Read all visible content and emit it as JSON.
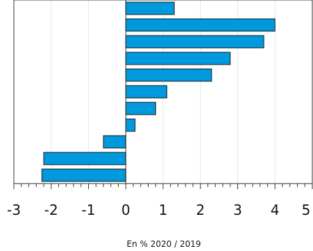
{
  "chart_data": {
    "type": "bar",
    "orientation": "horizontal",
    "title": "",
    "xlabel": "En % 2020 / 2019",
    "ylabel": "",
    "xlim": [
      -3,
      5
    ],
    "x_ticks": [
      "-3",
      "-2",
      "-1",
      "0",
      "1",
      "2",
      "3",
      "4",
      "5"
    ],
    "grid": true,
    "legend": "none",
    "bar_color": "#0099dd",
    "values": [
      1.3,
      4.0,
      3.7,
      2.8,
      2.3,
      1.1,
      0.8,
      0.25,
      -0.6,
      -2.2,
      -2.25
    ]
  }
}
